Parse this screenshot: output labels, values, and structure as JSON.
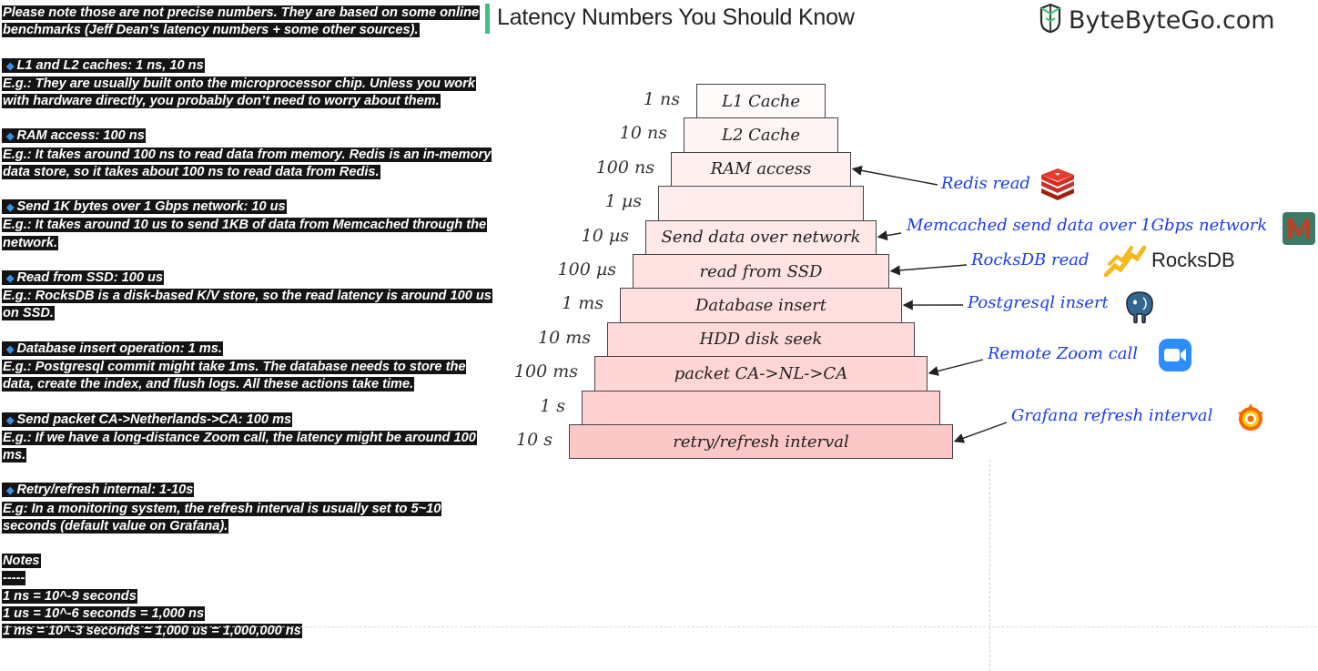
{
  "header": {
    "title": "Latency Numbers You Should Know",
    "brand": "ByteByteGo.com"
  },
  "intro": "Please note those are not precise numbers. They are based on some online benchmarks (Jeff Dean’s latency numbers + some other sources).",
  "items": [
    {
      "heading": "L1 and L2 caches: 1 ns, 10 ns",
      "detail": "E.g.: They are usually built onto the microprocessor chip. Unless you work with hardware directly, you probably don’t need to worry about them."
    },
    {
      "heading": "RAM access: 100 ns",
      "detail": "E.g.: It takes around 100 ns to read data from memory. Redis is an in-memory data store, so it takes about 100 ns to read data from Redis."
    },
    {
      "heading": "Send 1K bytes over 1 Gbps network: 10 us",
      "detail": "E.g.: It takes around 10 us to send 1KB of data from Memcached through the network."
    },
    {
      "heading": "Read from SSD: 100 us",
      "detail": "E.g.: RocksDB is a disk-based K/V store, so the read latency is around 100 us on SSD."
    },
    {
      "heading": "Database insert operation: 1 ms.",
      "detail": "E.g.: Postgresql commit might take 1ms. The database needs to store the data, create the index, and flush logs. All these actions take time."
    },
    {
      "heading": "Send packet CA->Netherlands->CA: 100 ms",
      "detail": "E.g.: If we have a long-distance Zoom call, the latency might be around 100 ms."
    },
    {
      "heading": "Retry/refresh internal: 1-10s",
      "detail": "E.g: In a monitoring system, the refresh interval is usually set to 5~10 seconds (default value on Grafana)."
    }
  ],
  "notes": {
    "title": "Notes",
    "divider": "-----",
    "lines": [
      "1 ns = 10^-9 seconds",
      "1 us = 10^-6 seconds = 1,000 ns",
      "1 ms = 10^-3 seconds = 1,000 us = 1,000,000 ns"
    ]
  },
  "pyramid": {
    "tiers": [
      {
        "latency": "1 ns",
        "label": "L1 Cache",
        "color": "#fffafa"
      },
      {
        "latency": "10 ns",
        "label": "L2 Cache",
        "color": "#fff5f5"
      },
      {
        "latency": "100 ns",
        "label": "RAM access",
        "color": "#fff0f0"
      },
      {
        "latency": "1 µs",
        "label": "",
        "color": "#ffecec"
      },
      {
        "latency": "10 µs",
        "label": "Send data over network",
        "color": "#ffe8e8"
      },
      {
        "latency": "100 µs",
        "label": "read from SSD",
        "color": "#ffe3e3"
      },
      {
        "latency": "1 ms",
        "label": "Database insert",
        "color": "#ffdfdf"
      },
      {
        "latency": "10 ms",
        "label": "HDD disk seek",
        "color": "#ffdada"
      },
      {
        "latency": "100 ms",
        "label": "packet CA->NL->CA",
        "color": "#ffd5d5"
      },
      {
        "latency": "1 s",
        "label": "",
        "color": "#ffd0d0"
      },
      {
        "latency": "10 s",
        "label": "retry/refresh interval",
        "color": "#fcc7c7"
      }
    ],
    "annotations": [
      {
        "text": "Redis read",
        "icon": "redis-icon",
        "tier": 2
      },
      {
        "text": "Memcached send data over 1Gbps network",
        "icon": "memcached-icon",
        "tier": 4
      },
      {
        "text": "RocksDB read",
        "icon": "rocksdb-icon",
        "tier": 5,
        "logo_text": "RocksDB"
      },
      {
        "text": "Postgresql insert",
        "icon": "postgresql-icon",
        "tier": 6
      },
      {
        "text": "Remote Zoom call",
        "icon": "zoom-icon",
        "tier": 8
      },
      {
        "text": "Grafana refresh interval",
        "icon": "grafana-icon",
        "tier": 10
      }
    ]
  }
}
